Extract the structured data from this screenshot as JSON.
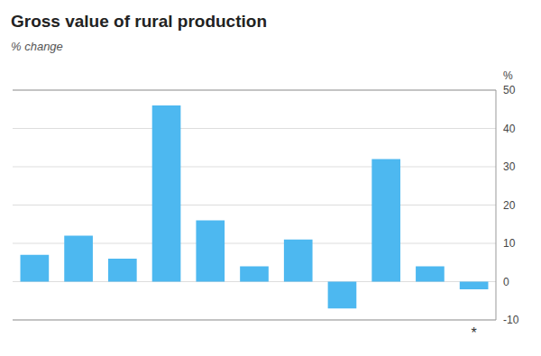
{
  "chart_data": {
    "type": "bar",
    "title": "Gross value of rural production",
    "subtitle": "% change",
    "y_label": "%",
    "categories": [
      null,
      null,
      null,
      null,
      null,
      null,
      null,
      null,
      null,
      null,
      null
    ],
    "values": [
      7,
      12,
      6,
      46,
      16,
      4,
      11,
      -7,
      32,
      4,
      -2
    ],
    "color": "#4db8f0",
    "ylim": [
      -10,
      50
    ],
    "yticks": [
      -10,
      0,
      10,
      20,
      30,
      40,
      50
    ],
    "grid": true,
    "tick_labels": "y",
    "annotations": [
      {
        "text": "*",
        "index": 10
      }
    ]
  }
}
